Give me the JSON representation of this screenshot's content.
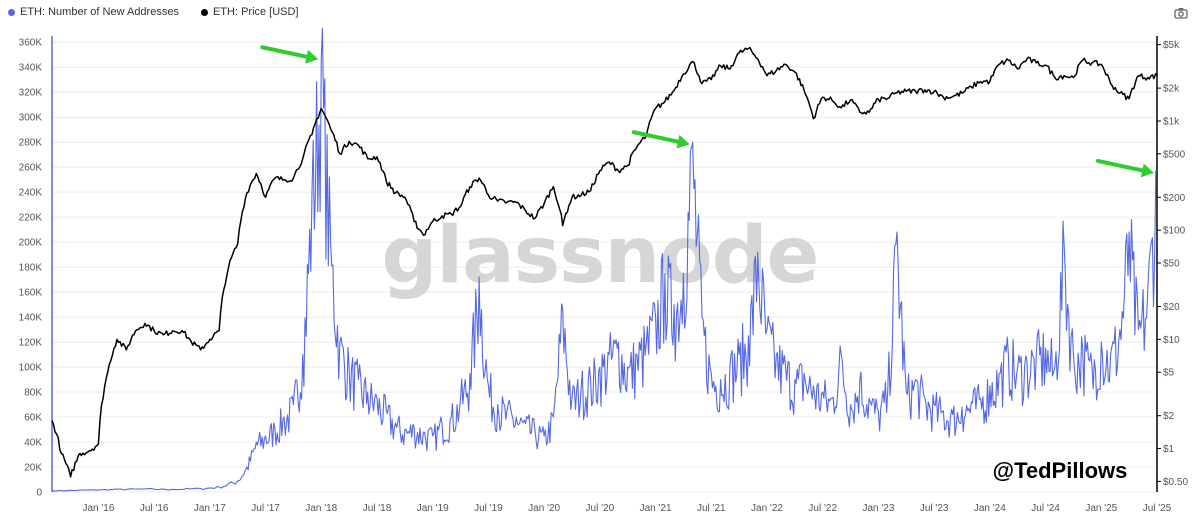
{
  "legend": {
    "series1": "ETH: Number of New Addresses",
    "series2": "ETH: Price [USD]"
  },
  "colors": {
    "addresses": "#5468e6",
    "price": "#000000",
    "arrows": "#2ecc2e",
    "grid": "#ececec"
  },
  "icons": {
    "camera": "camera-icon"
  },
  "watermark": "glassnode",
  "credit": "@TedPillows",
  "chart_data": {
    "type": "line",
    "title": "",
    "grid": true,
    "legend_position": "top-left",
    "x_axis": {
      "ticks": [
        "Jan '16",
        "Jul '16",
        "Jan '17",
        "Jul '17",
        "Jan '18",
        "Jul '18",
        "Jan '19",
        "Jul '19",
        "Jan '20",
        "Jul '20",
        "Jan '21",
        "Jul '21",
        "Jan '22",
        "Jul '22",
        "Jan '23",
        "Jul '23",
        "Jan '24",
        "Jul '24",
        "Jan '25",
        "Jul '25"
      ],
      "range": [
        "2015-08",
        "2025-07"
      ]
    },
    "y_left": {
      "ticks": [
        "0",
        "20K",
        "40K",
        "60K",
        "80K",
        "100K",
        "120K",
        "140K",
        "160K",
        "180K",
        "200K",
        "220K",
        "240K",
        "260K",
        "280K",
        "300K",
        "320K",
        "340K",
        "360K"
      ],
      "range": [
        0,
        365000
      ]
    },
    "y_right": {
      "scale": "log",
      "ticks": [
        "$0.50",
        "$1",
        "$2",
        "$5",
        "$10",
        "$20",
        "$50",
        "$100",
        "$200",
        "$500",
        "$1k",
        "$2k",
        "$5k"
      ]
    },
    "series": [
      {
        "name": "ETH: Number of New Addresses",
        "axis": "left",
        "points": [
          [
            "2015-08",
            1000
          ],
          [
            "2015-11",
            1500
          ],
          [
            "2016-01",
            1800
          ],
          [
            "2016-03",
            2200
          ],
          [
            "2016-06",
            2500
          ],
          [
            "2016-09",
            2200
          ],
          [
            "2016-12",
            2800
          ],
          [
            "2017-02",
            4000
          ],
          [
            "2017-04",
            9000
          ],
          [
            "2017-05",
            20000
          ],
          [
            "2017-06",
            40000
          ],
          [
            "2017-07",
            45000
          ],
          [
            "2017-08",
            52000
          ],
          [
            "2017-09",
            60000
          ],
          [
            "2017-10",
            70000
          ],
          [
            "2017-11",
            110000
          ],
          [
            "2017-12",
            240000
          ],
          [
            "2018-01",
            348000
          ],
          [
            "2018-02",
            200000
          ],
          [
            "2018-03",
            120000
          ],
          [
            "2018-04",
            100000
          ],
          [
            "2018-05",
            90000
          ],
          [
            "2018-06",
            80000
          ],
          [
            "2018-07",
            75000
          ],
          [
            "2018-08",
            65000
          ],
          [
            "2018-09",
            55000
          ],
          [
            "2018-10",
            50000
          ],
          [
            "2018-11",
            52000
          ],
          [
            "2018-12",
            48000
          ],
          [
            "2019-01",
            45000
          ],
          [
            "2019-02",
            55000
          ],
          [
            "2019-03",
            60000
          ],
          [
            "2019-04",
            75000
          ],
          [
            "2019-05",
            95000
          ],
          [
            "2019-06",
            172000
          ],
          [
            "2019-07",
            85000
          ],
          [
            "2019-08",
            70000
          ],
          [
            "2019-09",
            65000
          ],
          [
            "2019-10",
            60000
          ],
          [
            "2019-11",
            55000
          ],
          [
            "2019-12",
            50000
          ],
          [
            "2020-01",
            45000
          ],
          [
            "2020-02",
            60000
          ],
          [
            "2020-03",
            147000
          ],
          [
            "2020-04",
            75000
          ],
          [
            "2020-05",
            85000
          ],
          [
            "2020-06",
            90000
          ],
          [
            "2020-07",
            100000
          ],
          [
            "2020-08",
            110000
          ],
          [
            "2020-09",
            120000
          ],
          [
            "2020-10",
            100000
          ],
          [
            "2020-11",
            110000
          ],
          [
            "2020-12",
            120000
          ],
          [
            "2021-01",
            140000
          ],
          [
            "2021-02",
            175000
          ],
          [
            "2021-03",
            150000
          ],
          [
            "2021-04",
            175000
          ],
          [
            "2021-05",
            280000
          ],
          [
            "2021-06",
            140000
          ],
          [
            "2021-07",
            95000
          ],
          [
            "2021-08",
            90000
          ],
          [
            "2021-09",
            100000
          ],
          [
            "2021-10",
            110000
          ],
          [
            "2021-11",
            125000
          ],
          [
            "2021-12",
            192000
          ],
          [
            "2022-01",
            130000
          ],
          [
            "2022-02",
            110000
          ],
          [
            "2022-03",
            100000
          ],
          [
            "2022-04",
            90000
          ],
          [
            "2022-05",
            95000
          ],
          [
            "2022-06",
            85000
          ],
          [
            "2022-07",
            80000
          ],
          [
            "2022-08",
            75000
          ],
          [
            "2022-09",
            110000
          ],
          [
            "2022-10",
            70000
          ],
          [
            "2022-11",
            90000
          ],
          [
            "2022-12",
            75000
          ],
          [
            "2023-01",
            65000
          ],
          [
            "2023-02",
            80000
          ],
          [
            "2023-03",
            208000
          ],
          [
            "2023-04",
            80000
          ],
          [
            "2023-05",
            90000
          ],
          [
            "2023-06",
            75000
          ],
          [
            "2023-07",
            70000
          ],
          [
            "2023-08",
            65000
          ],
          [
            "2023-09",
            62000
          ],
          [
            "2023-10",
            68000
          ],
          [
            "2023-11",
            72000
          ],
          [
            "2023-12",
            75000
          ],
          [
            "2024-01",
            85000
          ],
          [
            "2024-02",
            95000
          ],
          [
            "2024-03",
            110000
          ],
          [
            "2024-04",
            100000
          ],
          [
            "2024-05",
            105000
          ],
          [
            "2024-06",
            110000
          ],
          [
            "2024-07",
            115000
          ],
          [
            "2024-08",
            100000
          ],
          [
            "2024-09",
            198000
          ],
          [
            "2024-10",
            110000
          ],
          [
            "2024-11",
            115000
          ],
          [
            "2024-12",
            100000
          ],
          [
            "2025-01",
            120000
          ],
          [
            "2025-02",
            110000
          ],
          [
            "2025-03",
            130000
          ],
          [
            "2025-04",
            208000
          ],
          [
            "2025-05",
            130000
          ],
          [
            "2025-06",
            160000
          ],
          [
            "2025-07",
            257000
          ]
        ]
      },
      {
        "name": "ETH: Price [USD]",
        "axis": "right",
        "points": [
          [
            "2015-08",
            1.8
          ],
          [
            "2015-09",
            0.9
          ],
          [
            "2015-10",
            0.55
          ],
          [
            "2015-11",
            0.9
          ],
          [
            "2015-12",
            0.95
          ],
          [
            "2016-01",
            1.1
          ],
          [
            "2016-02",
            5
          ],
          [
            "2016-03",
            10
          ],
          [
            "2016-04",
            8
          ],
          [
            "2016-05",
            12
          ],
          [
            "2016-06",
            14
          ],
          [
            "2016-07",
            12
          ],
          [
            "2016-08",
            11
          ],
          [
            "2016-09",
            12
          ],
          [
            "2016-10",
            12
          ],
          [
            "2016-11",
            9.5
          ],
          [
            "2016-12",
            8
          ],
          [
            "2017-01",
            10
          ],
          [
            "2017-02",
            12
          ],
          [
            "2017-03",
            45
          ],
          [
            "2017-04",
            75
          ],
          [
            "2017-05",
            220
          ],
          [
            "2017-06",
            330
          ],
          [
            "2017-07",
            200
          ],
          [
            "2017-08",
            300
          ],
          [
            "2017-09",
            290
          ],
          [
            "2017-10",
            300
          ],
          [
            "2017-11",
            450
          ],
          [
            "2017-12",
            750
          ],
          [
            "2018-01",
            1300
          ],
          [
            "2018-02",
            850
          ],
          [
            "2018-03",
            500
          ],
          [
            "2018-04",
            650
          ],
          [
            "2018-05",
            600
          ],
          [
            "2018-06",
            450
          ],
          [
            "2018-07",
            470
          ],
          [
            "2018-08",
            280
          ],
          [
            "2018-09",
            220
          ],
          [
            "2018-10",
            200
          ],
          [
            "2018-11",
            120
          ],
          [
            "2018-12",
            90
          ],
          [
            "2019-01",
            120
          ],
          [
            "2019-02",
            135
          ],
          [
            "2019-03",
            140
          ],
          [
            "2019-04",
            165
          ],
          [
            "2019-05",
            250
          ],
          [
            "2019-06",
            300
          ],
          [
            "2019-07",
            210
          ],
          [
            "2019-08",
            185
          ],
          [
            "2019-09",
            180
          ],
          [
            "2019-10",
            180
          ],
          [
            "2019-11",
            150
          ],
          [
            "2019-12",
            128
          ],
          [
            "2020-01",
            175
          ],
          [
            "2020-02",
            250
          ],
          [
            "2020-03",
            110
          ],
          [
            "2020-04",
            200
          ],
          [
            "2020-05",
            210
          ],
          [
            "2020-06",
            230
          ],
          [
            "2020-07",
            350
          ],
          [
            "2020-08",
            420
          ],
          [
            "2020-09",
            350
          ],
          [
            "2020-10",
            390
          ],
          [
            "2020-11",
            580
          ],
          [
            "2020-12",
            730
          ],
          [
            "2021-01",
            1300
          ],
          [
            "2021-02",
            1500
          ],
          [
            "2021-03",
            1900
          ],
          [
            "2021-04",
            2700
          ],
          [
            "2021-05",
            3500
          ],
          [
            "2021-06",
            2200
          ],
          [
            "2021-07",
            2400
          ],
          [
            "2021-08",
            3200
          ],
          [
            "2021-09",
            3000
          ],
          [
            "2021-10",
            4200
          ],
          [
            "2021-11",
            4600
          ],
          [
            "2021-12",
            3700
          ],
          [
            "2022-01",
            2600
          ],
          [
            "2022-02",
            2900
          ],
          [
            "2022-03",
            3300
          ],
          [
            "2022-04",
            2800
          ],
          [
            "2022-05",
            1900
          ],
          [
            "2022-06",
            1050
          ],
          [
            "2022-07",
            1650
          ],
          [
            "2022-08",
            1550
          ],
          [
            "2022-09",
            1320
          ],
          [
            "2022-10",
            1560
          ],
          [
            "2022-11",
            1200
          ],
          [
            "2022-12",
            1200
          ],
          [
            "2023-01",
            1580
          ],
          [
            "2023-02",
            1610
          ],
          [
            "2023-03",
            1820
          ],
          [
            "2023-04",
            1870
          ],
          [
            "2023-05",
            1870
          ],
          [
            "2023-06",
            1930
          ],
          [
            "2023-07",
            1860
          ],
          [
            "2023-08",
            1650
          ],
          [
            "2023-09",
            1670
          ],
          [
            "2023-10",
            1800
          ],
          [
            "2023-11",
            2050
          ],
          [
            "2023-12",
            2300
          ],
          [
            "2024-01",
            2300
          ],
          [
            "2024-02",
            3300
          ],
          [
            "2024-03",
            3600
          ],
          [
            "2024-04",
            3000
          ],
          [
            "2024-05",
            3700
          ],
          [
            "2024-06",
            3400
          ],
          [
            "2024-07",
            3250
          ],
          [
            "2024-08",
            2500
          ],
          [
            "2024-09",
            2600
          ],
          [
            "2024-10",
            2500
          ],
          [
            "2024-11",
            3600
          ],
          [
            "2024-12",
            3400
          ],
          [
            "2025-01",
            3300
          ],
          [
            "2025-02",
            2200
          ],
          [
            "2025-03",
            1800
          ],
          [
            "2025-04",
            1600
          ],
          [
            "2025-05",
            2600
          ],
          [
            "2025-06",
            2500
          ],
          [
            "2025-07",
            2600
          ]
        ]
      }
    ],
    "annotations": [
      {
        "type": "arrow",
        "points_to": "2018-01 peak"
      },
      {
        "type": "arrow",
        "points_to": "2021-05 peak"
      },
      {
        "type": "arrow",
        "points_to": "2025-07 peak"
      }
    ]
  }
}
